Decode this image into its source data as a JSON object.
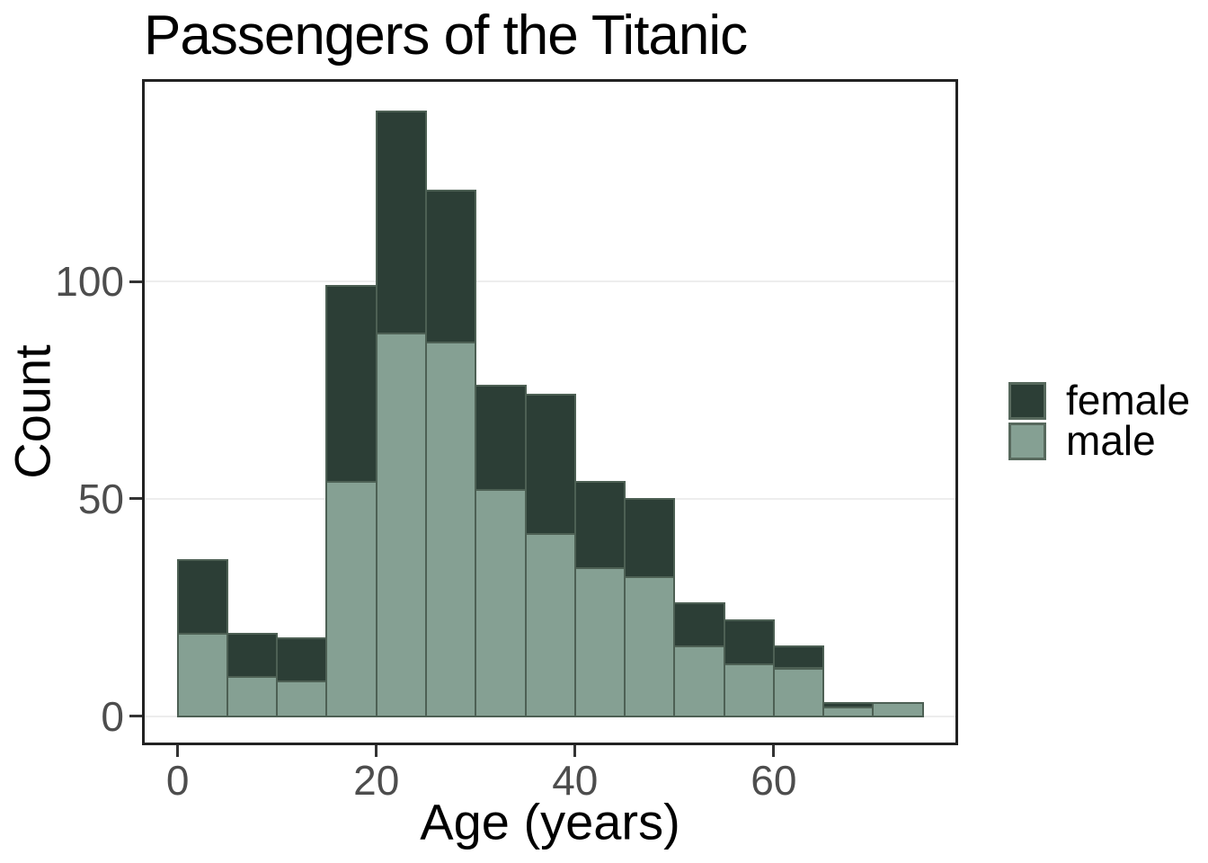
{
  "title": "Passengers of the Titanic",
  "axes": {
    "x": {
      "label": "Age (years)",
      "ticks": [
        "0",
        "20",
        "40",
        "60"
      ],
      "tick_values": [
        0,
        20,
        40,
        60
      ]
    },
    "y": {
      "label": "Count",
      "ticks": [
        "0",
        "50",
        "100"
      ],
      "tick_values": [
        0,
        50,
        100
      ]
    }
  },
  "legend": {
    "items": [
      {
        "label": "female",
        "color": "#2c3e36"
      },
      {
        "label": "male",
        "color": "#85a093"
      }
    ]
  },
  "colors": {
    "female": "#2c3e36",
    "male": "#85a093",
    "bar_stroke": "#4d6054",
    "grid": "#ededed",
    "panel_border": "#222222",
    "tick": "#333333",
    "tick_label": "#4d4d4d",
    "text": "#000000",
    "background": "#ffffff"
  },
  "chart_data": {
    "type": "bar",
    "subtype": "stacked-histogram",
    "title": "Passengers of the Titanic",
    "xlabel": "Age (years)",
    "ylabel": "Count",
    "bin_width": 5,
    "bin_starts": [
      0,
      5,
      10,
      15,
      20,
      25,
      30,
      35,
      40,
      45,
      50,
      55,
      60,
      65,
      70
    ],
    "series": [
      {
        "name": "female",
        "color": "#2c3e36",
        "values": [
          17,
          10,
          10,
          45,
          51,
          35,
          24,
          32,
          20,
          18,
          10,
          10,
          5,
          1,
          0
        ]
      },
      {
        "name": "male",
        "color": "#85a093",
        "values": [
          19,
          9,
          8,
          54,
          88,
          86,
          52,
          42,
          34,
          32,
          16,
          12,
          11,
          2,
          3
        ]
      }
    ],
    "totals": [
      36,
      19,
      18,
      99,
      139,
      121,
      76,
      74,
      54,
      50,
      26,
      22,
      16,
      3,
      3
    ],
    "stack_order_top_to_bottom": [
      "female",
      "male"
    ],
    "x_ticks": [
      0,
      20,
      40,
      60
    ],
    "y_ticks": [
      0,
      50,
      100
    ],
    "xlim": [
      -3.6,
      78.6
    ],
    "ylim": [
      -6.7,
      146.5
    ],
    "grid": "y-only",
    "legend_position": "right"
  }
}
